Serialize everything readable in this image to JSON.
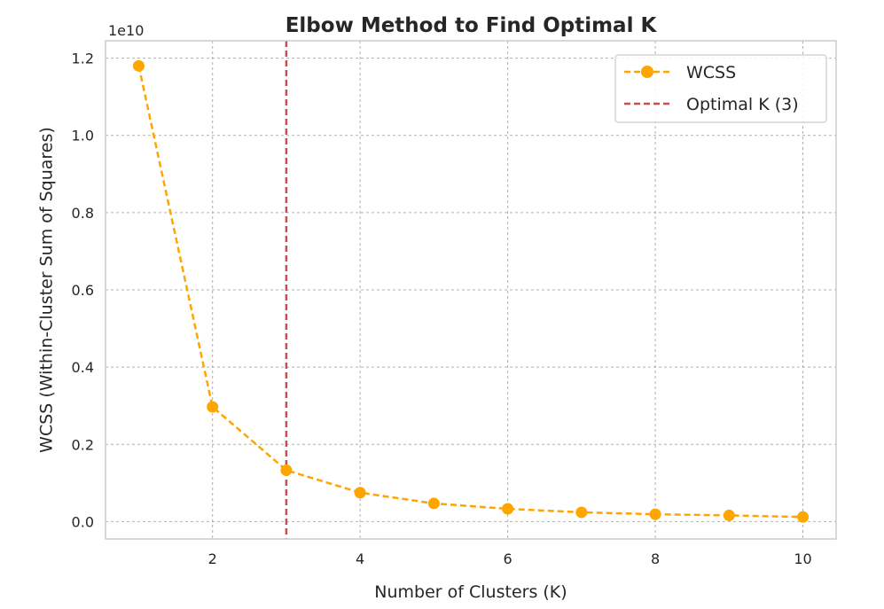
{
  "chart_data": {
    "type": "line",
    "title": "Elbow Method to Find Optimal K",
    "xlabel": "Number of Clusters (K)",
    "ylabel": "WCSS (Within-Cluster Sum of Squares)",
    "y_offset_label": "1e10",
    "x": [
      1,
      2,
      3,
      4,
      5,
      6,
      7,
      8,
      9,
      10
    ],
    "x_ticks": [
      2,
      4,
      6,
      8,
      10
    ],
    "x_tick_labels": [
      "2",
      "4",
      "6",
      "8",
      "10"
    ],
    "y_ticks": [
      0,
      0.2,
      0.4,
      0.6,
      0.8,
      1.0,
      1.2
    ],
    "y_tick_labels": [
      "0.0",
      "0.2",
      "0.4",
      "0.6",
      "0.8",
      "1.0",
      "1.2"
    ],
    "xlim": [
      0.55,
      10.45
    ],
    "ylim": [
      -0.045,
      1.245
    ],
    "grid": true,
    "legend_position": "top-right",
    "series": [
      {
        "name": "WCSS",
        "values": [
          1.18,
          0.297,
          0.133,
          0.075,
          0.047,
          0.033,
          0.024,
          0.019,
          0.016,
          0.012
        ],
        "color": "#ffa500",
        "line_style": "dashed",
        "marker": "circle"
      }
    ],
    "vline": {
      "name": "Optimal K (3)",
      "x": 3,
      "color": "#c44e52",
      "line_style": "dashed"
    }
  }
}
